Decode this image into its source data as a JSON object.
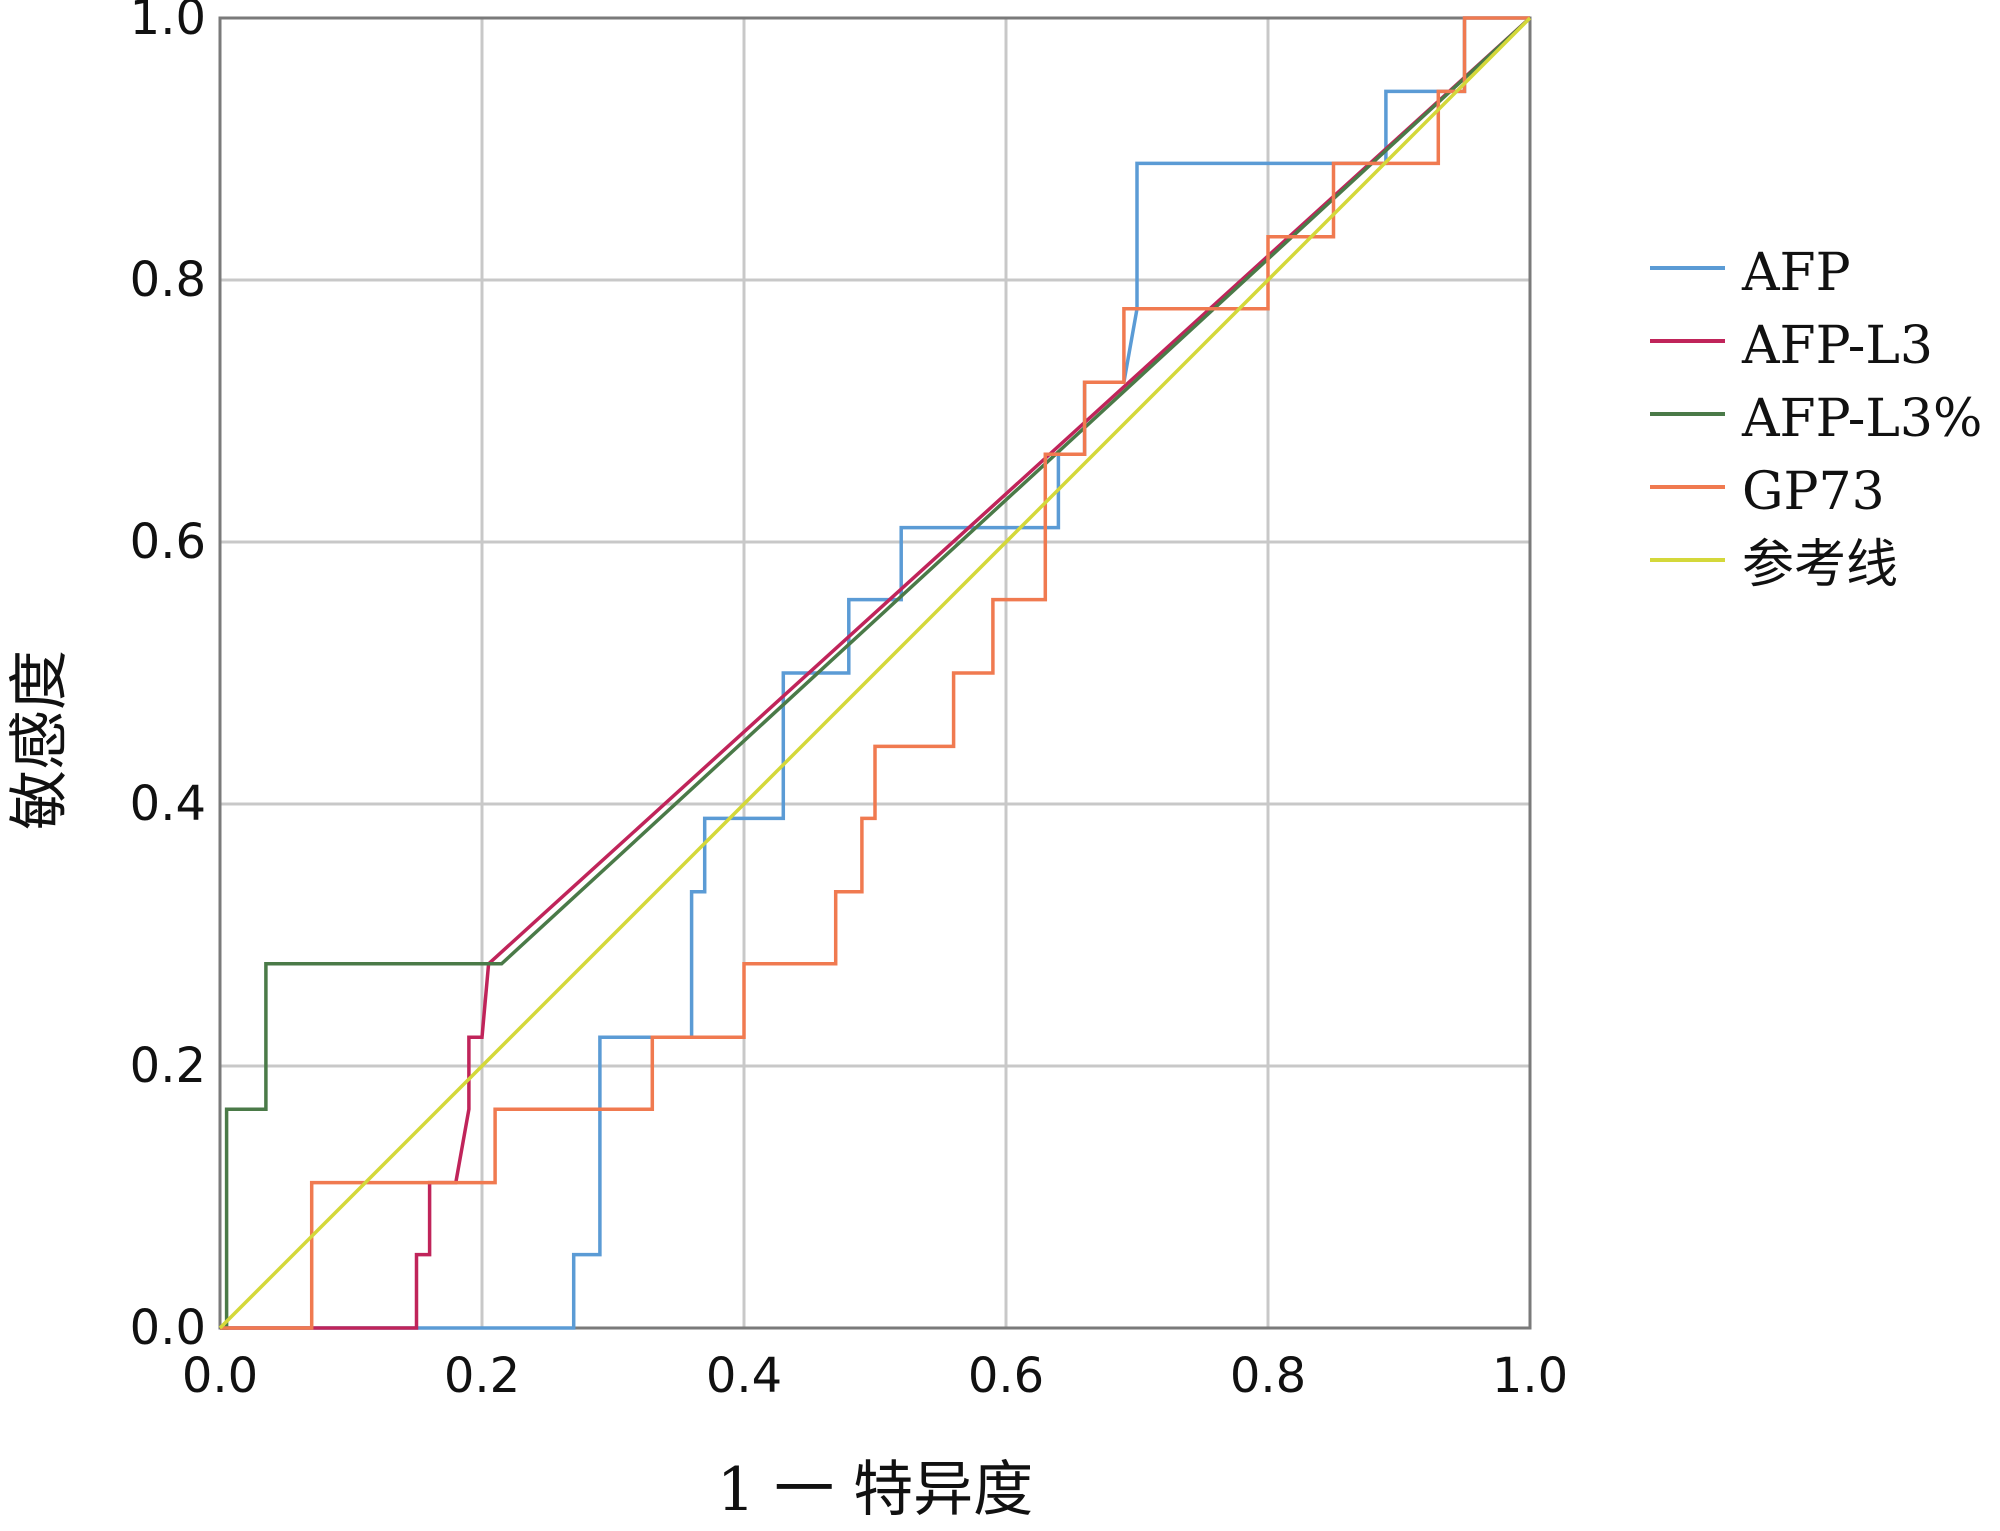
{
  "chart_data": {
    "type": "line",
    "xlabel": "1 一 特异度",
    "ylabel": "敏感度",
    "xlim": [
      0,
      1
    ],
    "ylim": [
      0,
      1
    ],
    "x_ticks": [
      "0.0",
      "0.2",
      "0.4",
      "0.6",
      "0.8",
      "1.0"
    ],
    "y_ticks": [
      "0.0",
      "0.2",
      "0.4",
      "0.6",
      "0.8",
      "1.0"
    ],
    "x_tick_values": [
      0,
      0.2,
      0.4,
      0.6,
      0.8,
      1.0
    ],
    "y_tick_values": [
      0,
      0.2,
      0.4,
      0.6,
      0.8,
      1.0
    ],
    "grid": true,
    "legend_position": "right",
    "series": [
      {
        "name": "AFP",
        "color": "#5b9bd5",
        "points": [
          [
            0,
            0
          ],
          [
            0.27,
            0
          ],
          [
            0.27,
            0.056
          ],
          [
            0.29,
            0.056
          ],
          [
            0.29,
            0.222
          ],
          [
            0.36,
            0.222
          ],
          [
            0.36,
            0.333
          ],
          [
            0.37,
            0.333
          ],
          [
            0.37,
            0.389
          ],
          [
            0.43,
            0.389
          ],
          [
            0.43,
            0.5
          ],
          [
            0.48,
            0.5
          ],
          [
            0.48,
            0.556
          ],
          [
            0.52,
            0.556
          ],
          [
            0.52,
            0.611
          ],
          [
            0.64,
            0.611
          ],
          [
            0.64,
            0.667
          ],
          [
            0.66,
            0.667
          ],
          [
            0.66,
            0.722
          ],
          [
            0.69,
            0.722
          ],
          [
            0.7,
            0.778
          ],
          [
            0.7,
            0.889
          ],
          [
            0.89,
            0.889
          ],
          [
            0.89,
            0.944
          ],
          [
            0.95,
            0.944
          ],
          [
            0.95,
            1.0
          ],
          [
            1.0,
            1.0
          ]
        ]
      },
      {
        "name": "AFP-L3",
        "color": "#c0245a",
        "points": [
          [
            0,
            0
          ],
          [
            0.15,
            0
          ],
          [
            0.15,
            0.056
          ],
          [
            0.16,
            0.056
          ],
          [
            0.16,
            0.111
          ],
          [
            0.18,
            0.111
          ],
          [
            0.19,
            0.167
          ],
          [
            0.19,
            0.222
          ],
          [
            0.2,
            0.222
          ],
          [
            0.205,
            0.278
          ],
          [
            1.0,
            1.0
          ]
        ]
      },
      {
        "name": "AFP-L3%",
        "color": "#4a7a48",
        "points": [
          [
            0,
            0
          ],
          [
            0.005,
            0
          ],
          [
            0.005,
            0.167
          ],
          [
            0.035,
            0.167
          ],
          [
            0.035,
            0.278
          ],
          [
            0.215,
            0.278
          ],
          [
            1.0,
            1.0
          ]
        ]
      },
      {
        "name": "GP73",
        "color": "#f07a50",
        "points": [
          [
            0,
            0
          ],
          [
            0.07,
            0
          ],
          [
            0.07,
            0.111
          ],
          [
            0.21,
            0.111
          ],
          [
            0.21,
            0.167
          ],
          [
            0.33,
            0.167
          ],
          [
            0.33,
            0.222
          ],
          [
            0.4,
            0.222
          ],
          [
            0.4,
            0.278
          ],
          [
            0.47,
            0.278
          ],
          [
            0.47,
            0.333
          ],
          [
            0.49,
            0.333
          ],
          [
            0.49,
            0.389
          ],
          [
            0.5,
            0.389
          ],
          [
            0.5,
            0.444
          ],
          [
            0.56,
            0.444
          ],
          [
            0.56,
            0.5
          ],
          [
            0.59,
            0.5
          ],
          [
            0.59,
            0.556
          ],
          [
            0.63,
            0.556
          ],
          [
            0.63,
            0.667
          ],
          [
            0.66,
            0.667
          ],
          [
            0.66,
            0.722
          ],
          [
            0.69,
            0.722
          ],
          [
            0.69,
            0.778
          ],
          [
            0.8,
            0.778
          ],
          [
            0.8,
            0.833
          ],
          [
            0.85,
            0.833
          ],
          [
            0.85,
            0.889
          ],
          [
            0.93,
            0.889
          ],
          [
            0.93,
            0.944
          ],
          [
            0.95,
            0.944
          ],
          [
            0.95,
            1.0
          ],
          [
            1.0,
            1.0
          ]
        ]
      },
      {
        "name": "参考线",
        "color": "#d4d83a",
        "points": [
          [
            0,
            0
          ],
          [
            1,
            1
          ]
        ]
      }
    ]
  }
}
